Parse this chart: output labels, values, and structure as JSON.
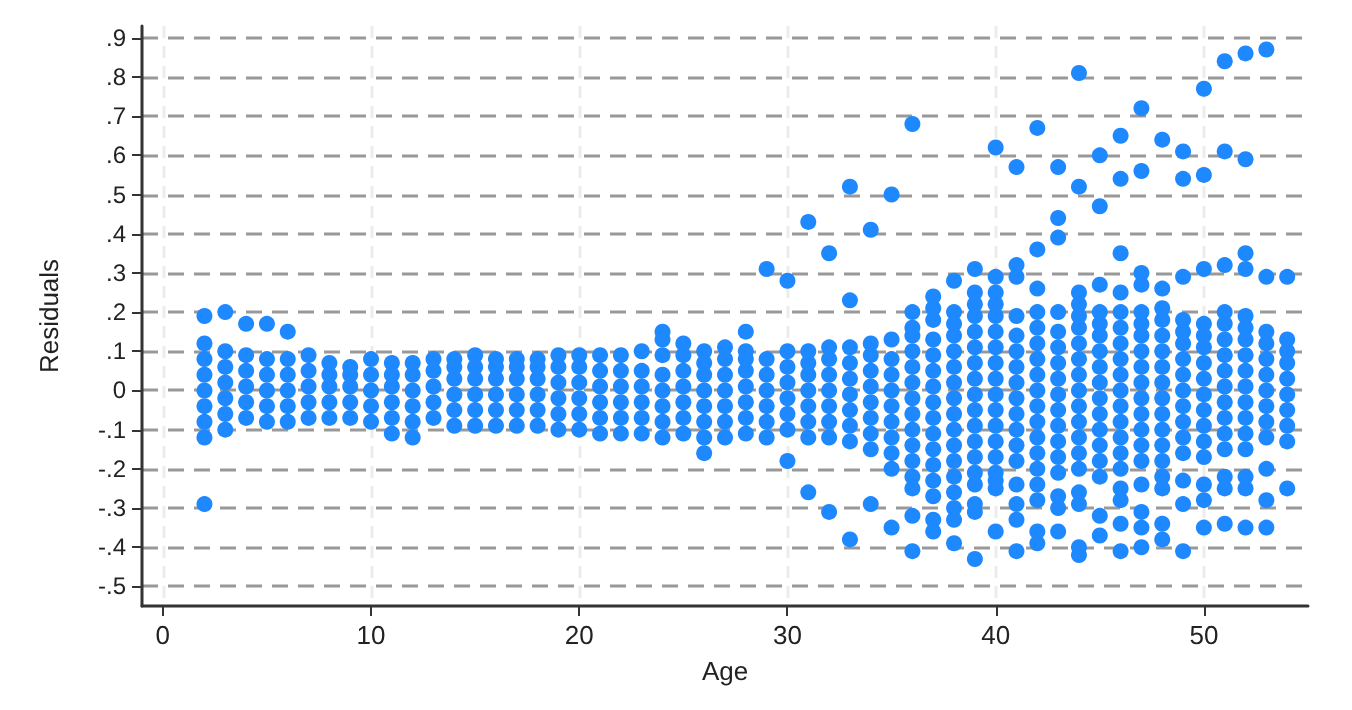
{
  "chart_data": {
    "type": "scatter",
    "xlabel": "Age",
    "ylabel": "Residuals",
    "color": "#1e88ff",
    "marker": "circle",
    "grid": true,
    "xlim": [
      -1,
      55
    ],
    "ylim": [
      -0.55,
      0.93
    ],
    "xticks": [
      0,
      10,
      20,
      30,
      40,
      50
    ],
    "yticks": [
      {
        "value": 0.9,
        "label": ".9"
      },
      {
        "value": 0.8,
        "label": ".8"
      },
      {
        "value": 0.7,
        "label": ".7"
      },
      {
        "value": 0.6,
        "label": ".6"
      },
      {
        "value": 0.5,
        "label": ".5"
      },
      {
        "value": 0.4,
        "label": ".4"
      },
      {
        "value": 0.3,
        "label": ".3"
      },
      {
        "value": 0.2,
        "label": ".2"
      },
      {
        "value": 0.1,
        "label": ".1"
      },
      {
        "value": 0,
        "label": "0"
      },
      {
        "value": -0.1,
        "label": "-.1"
      },
      {
        "value": -0.2,
        "label": "-.2"
      },
      {
        "value": -0.3,
        "label": "-.3"
      },
      {
        "value": -0.4,
        "label": "-.4"
      },
      {
        "value": -0.5,
        "label": "-.5"
      }
    ],
    "x": [
      2,
      2,
      2,
      2,
      2,
      2,
      2,
      2,
      2,
      3,
      3,
      3,
      3,
      3,
      3,
      3,
      4,
      4,
      4,
      4,
      4,
      4,
      5,
      5,
      5,
      5,
      5,
      5,
      6,
      6,
      6,
      6,
      6,
      6,
      7,
      7,
      7,
      7,
      7,
      8,
      8,
      8,
      8,
      8,
      9,
      9,
      9,
      9,
      9,
      10,
      10,
      10,
      10,
      10,
      11,
      11,
      11,
      11,
      11,
      11,
      12,
      12,
      12,
      12,
      12,
      12,
      13,
      13,
      13,
      13,
      13,
      14,
      14,
      14,
      14,
      14,
      14,
      15,
      15,
      15,
      15,
      15,
      15,
      16,
      16,
      16,
      16,
      16,
      16,
      17,
      17,
      17,
      17,
      17,
      17,
      18,
      18,
      18,
      18,
      18,
      18,
      19,
      19,
      19,
      19,
      19,
      19,
      20,
      20,
      20,
      20,
      20,
      20,
      21,
      21,
      21,
      21,
      21,
      21,
      22,
      22,
      22,
      22,
      22,
      22,
      23,
      23,
      23,
      23,
      23,
      23,
      24,
      24,
      24,
      24,
      24,
      24,
      24,
      24,
      25,
      25,
      25,
      25,
      25,
      25,
      25,
      26,
      26,
      26,
      26,
      26,
      26,
      26,
      26,
      27,
      27,
      27,
      27,
      27,
      27,
      27,
      28,
      28,
      28,
      28,
      28,
      28,
      28,
      28,
      29,
      29,
      29,
      29,
      29,
      29,
      29,
      30,
      30,
      30,
      30,
      30,
      30,
      30,
      30,
      31,
      31,
      31,
      31,
      31,
      31,
      31,
      31,
      31,
      32,
      32,
      32,
      32,
      32,
      32,
      32,
      32,
      32,
      33,
      33,
      33,
      33,
      33,
      33,
      33,
      33,
      33,
      33,
      34,
      34,
      34,
      34,
      34,
      34,
      34,
      34,
      34,
      34,
      35,
      35,
      35,
      35,
      35,
      35,
      35,
      35,
      35,
      35,
      35,
      36,
      36,
      36,
      36,
      36,
      36,
      36,
      36,
      36,
      36,
      36,
      36,
      36,
      36,
      36,
      36,
      37,
      37,
      37,
      37,
      37,
      37,
      37,
      37,
      37,
      37,
      37,
      37,
      37,
      37,
      37,
      37,
      38,
      38,
      38,
      38,
      38,
      38,
      38,
      38,
      38,
      38,
      38,
      38,
      38,
      38,
      38,
      38,
      38,
      39,
      39,
      39,
      39,
      39,
      39,
      39,
      39,
      39,
      39,
      39,
      39,
      39,
      39,
      39,
      39,
      39,
      39,
      40,
      40,
      40,
      40,
      40,
      40,
      40,
      40,
      40,
      40,
      40,
      40,
      40,
      40,
      40,
      40,
      40,
      40,
      41,
      41,
      41,
      41,
      41,
      41,
      41,
      41,
      41,
      41,
      41,
      41,
      41,
      41,
      41,
      41,
      41,
      42,
      42,
      42,
      42,
      42,
      42,
      42,
      42,
      42,
      42,
      42,
      42,
      42,
      42,
      42,
      42,
      42,
      42,
      43,
      43,
      43,
      43,
      43,
      43,
      43,
      43,
      43,
      43,
      43,
      43,
      43,
      43,
      43,
      43,
      43,
      44,
      44,
      44,
      44,
      44,
      44,
      44,
      44,
      44,
      44,
      44,
      44,
      44,
      44,
      44,
      44,
      44,
      44,
      44,
      45,
      45,
      45,
      45,
      45,
      45,
      45,
      45,
      45,
      45,
      45,
      45,
      45,
      45,
      45,
      45,
      45,
      46,
      46,
      46,
      46,
      46,
      46,
      46,
      46,
      46,
      46,
      46,
      46,
      46,
      46,
      46,
      46,
      46,
      46,
      46,
      47,
      47,
      47,
      47,
      47,
      47,
      47,
      47,
      47,
      47,
      47,
      47,
      47,
      47,
      47,
      47,
      47,
      47,
      47,
      48,
      48,
      48,
      48,
      48,
      48,
      48,
      48,
      48,
      48,
      48,
      48,
      48,
      48,
      48,
      48,
      48,
      49,
      49,
      49,
      49,
      49,
      49,
      49,
      49,
      49,
      49,
      49,
      49,
      49,
      49,
      49,
      49,
      50,
      50,
      50,
      50,
      50,
      50,
      50,
      50,
      50,
      50,
      50,
      50,
      50,
      50,
      50,
      50,
      51,
      51,
      51,
      51,
      51,
      51,
      51,
      51,
      51,
      51,
      51,
      51,
      51,
      51,
      51,
      51,
      52,
      52,
      52,
      52,
      52,
      52,
      52,
      52,
      52,
      52,
      52,
      52,
      52,
      52,
      52,
      52,
      52,
      53,
      53,
      53,
      53,
      53,
      53,
      53,
      53,
      53,
      53,
      53,
      53,
      53,
      54,
      54,
      54,
      54,
      54,
      54,
      54,
      54,
      54,
      54
    ],
    "values": [
      -0.29,
      -0.12,
      -0.08,
      -0.04,
      0,
      0.04,
      0.08,
      0.12,
      0.19,
      -0.1,
      -0.06,
      -0.02,
      0.02,
      0.06,
      0.1,
      0.2,
      -0.07,
      -0.03,
      0.01,
      0.05,
      0.09,
      0.17,
      -0.08,
      -0.04,
      0,
      0.04,
      0.08,
      0.17,
      -0.08,
      -0.04,
      0,
      0.04,
      0.08,
      0.15,
      -0.07,
      -0.03,
      0.01,
      0.05,
      0.09,
      -0.07,
      -0.03,
      0.01,
      0.04,
      0.07,
      -0.07,
      -0.03,
      0.01,
      0.04,
      0.06,
      -0.08,
      -0.04,
      0,
      0.04,
      0.08,
      -0.11,
      -0.07,
      -0.03,
      0.01,
      0.04,
      0.07,
      -0.12,
      -0.08,
      -0.04,
      0,
      0.04,
      0.07,
      -0.07,
      -0.03,
      0.01,
      0.05,
      0.08,
      -0.09,
      -0.05,
      -0.01,
      0.03,
      0.06,
      0.08,
      -0.09,
      -0.05,
      -0.01,
      0.03,
      0.06,
      0.09,
      -0.09,
      -0.05,
      -0.01,
      0.03,
      0.06,
      0.08,
      -0.09,
      -0.05,
      -0.01,
      0.03,
      0.06,
      0.08,
      -0.09,
      -0.05,
      -0.01,
      0.03,
      0.06,
      0.08,
      -0.1,
      -0.06,
      -0.02,
      0.02,
      0.06,
      0.09,
      -0.1,
      -0.06,
      -0.02,
      0.02,
      0.06,
      0.09,
      -0.11,
      -0.07,
      -0.03,
      0.01,
      0.05,
      0.09,
      -0.11,
      -0.07,
      -0.03,
      0.01,
      0.05,
      0.09,
      -0.11,
      -0.07,
      -0.03,
      0.01,
      0.05,
      0.1,
      -0.12,
      -0.08,
      -0.04,
      0,
      0.04,
      0.09,
      0.13,
      0.15,
      -0.11,
      -0.07,
      -0.03,
      0.01,
      0.05,
      0.09,
      0.12,
      -0.16,
      -0.12,
      -0.08,
      -0.04,
      0,
      0.04,
      0.07,
      0.1,
      -0.12,
      -0.08,
      -0.04,
      0,
      0.04,
      0.08,
      0.11,
      -0.11,
      -0.07,
      -0.03,
      0.01,
      0.05,
      0.08,
      0.1,
      0.15,
      -0.12,
      -0.08,
      -0.04,
      0,
      0.04,
      0.08,
      0.31,
      -0.18,
      -0.1,
      -0.06,
      -0.02,
      0.02,
      0.06,
      0.1,
      0.28,
      -0.26,
      -0.12,
      -0.08,
      -0.04,
      0,
      0.04,
      0.07,
      0.1,
      0.43,
      -0.31,
      -0.12,
      -0.08,
      -0.04,
      0,
      0.04,
      0.08,
      0.11,
      0.35,
      -0.38,
      -0.13,
      -0.09,
      -0.05,
      -0.01,
      0.03,
      0.07,
      0.11,
      0.23,
      0.52,
      -0.29,
      -0.15,
      -0.11,
      -0.07,
      -0.03,
      0.01,
      0.05,
      0.09,
      0.12,
      0.41,
      -0.35,
      -0.2,
      -0.16,
      -0.12,
      -0.08,
      -0.04,
      0,
      0.04,
      0.08,
      0.13,
      0.5,
      -0.41,
      -0.32,
      -0.25,
      -0.22,
      -0.18,
      -0.14,
      -0.1,
      -0.06,
      -0.02,
      0.02,
      0.06,
      0.1,
      0.14,
      0.16,
      0.2,
      0.68,
      -0.36,
      -0.33,
      -0.27,
      -0.23,
      -0.19,
      -0.15,
      -0.11,
      -0.07,
      -0.03,
      0.01,
      0.05,
      0.09,
      0.13,
      0.18,
      0.21,
      0.24,
      -0.39,
      -0.33,
      -0.3,
      -0.26,
      -0.22,
      -0.18,
      -0.14,
      -0.1,
      -0.06,
      -0.02,
      0.02,
      0.06,
      0.1,
      0.14,
      0.17,
      0.2,
      0.28,
      -0.43,
      -0.31,
      -0.29,
      -0.24,
      -0.21,
      -0.17,
      -0.13,
      -0.09,
      -0.05,
      -0.01,
      0.03,
      0.07,
      0.11,
      0.15,
      0.19,
      0.22,
      0.25,
      0.31,
      -0.36,
      -0.25,
      -0.23,
      -0.21,
      -0.17,
      -0.13,
      -0.09,
      -0.05,
      -0.01,
      0.03,
      0.07,
      0.11,
      0.15,
      0.19,
      0.22,
      0.25,
      0.29,
      0.62,
      -0.41,
      -0.33,
      -0.29,
      -0.24,
      -0.18,
      -0.14,
      -0.1,
      -0.06,
      -0.02,
      0.02,
      0.06,
      0.1,
      0.14,
      0.19,
      0.29,
      0.32,
      0.57,
      -0.39,
      -0.36,
      -0.28,
      -0.24,
      -0.2,
      -0.16,
      -0.12,
      -0.08,
      -0.04,
      0,
      0.04,
      0.08,
      0.12,
      0.16,
      0.2,
      0.26,
      0.36,
      0.67,
      -0.36,
      -0.3,
      -0.27,
      -0.21,
      -0.17,
      -0.13,
      -0.09,
      -0.05,
      -0.01,
      0.03,
      0.07,
      0.11,
      0.15,
      0.2,
      0.39,
      0.44,
      0.57,
      -0.42,
      -0.4,
      -0.29,
      -0.26,
      -0.2,
      -0.16,
      -0.12,
      -0.08,
      -0.04,
      0,
      0.04,
      0.08,
      0.12,
      0.16,
      0.19,
      0.22,
      0.25,
      0.52,
      0.81,
      -0.37,
      -0.32,
      -0.22,
      -0.18,
      -0.14,
      -0.1,
      -0.06,
      -0.02,
      0.02,
      0.06,
      0.1,
      0.14,
      0.17,
      0.2,
      0.27,
      0.47,
      0.6,
      -0.41,
      -0.34,
      -0.28,
      -0.25,
      -0.2,
      -0.16,
      -0.12,
      -0.08,
      -0.04,
      0,
      0.04,
      0.08,
      0.12,
      0.16,
      0.2,
      0.25,
      0.35,
      0.54,
      0.65,
      -0.4,
      -0.35,
      -0.31,
      -0.24,
      -0.18,
      -0.14,
      -0.1,
      -0.06,
      -0.02,
      0.02,
      0.06,
      0.1,
      0.14,
      0.17,
      0.2,
      0.27,
      0.3,
      0.56,
      0.72,
      -0.38,
      -0.34,
      -0.25,
      -0.22,
      -0.18,
      -0.14,
      -0.1,
      -0.06,
      -0.02,
      0.02,
      0.06,
      0.1,
      0.14,
      0.18,
      0.21,
      0.26,
      0.64,
      -0.41,
      -0.29,
      -0.23,
      -0.16,
      -0.12,
      -0.08,
      -0.04,
      0,
      0.04,
      0.08,
      0.12,
      0.15,
      0.18,
      0.29,
      0.54,
      0.61,
      -0.35,
      -0.28,
      -0.24,
      -0.17,
      -0.13,
      -0.09,
      -0.05,
      -0.01,
      0.03,
      0.07,
      0.11,
      0.14,
      0.17,
      0.31,
      0.55,
      0.77,
      -0.34,
      -0.25,
      -0.22,
      -0.15,
      -0.11,
      -0.07,
      -0.03,
      0.01,
      0.05,
      0.09,
      0.13,
      0.17,
      0.2,
      0.32,
      0.61,
      0.84,
      -0.35,
      -0.25,
      -0.22,
      -0.15,
      -0.11,
      -0.07,
      -0.03,
      0.01,
      0.05,
      0.09,
      0.13,
      0.16,
      0.19,
      0.31,
      0.35,
      0.59,
      0.86,
      -0.35,
      -0.28,
      -0.2,
      -0.12,
      -0.08,
      -0.04,
      0,
      0.04,
      0.08,
      0.12,
      0.15,
      0.29,
      0.87,
      -0.25,
      -0.13,
      -0.09,
      -0.05,
      -0.01,
      0.03,
      0.07,
      0.1,
      0.13,
      0.29
    ]
  }
}
